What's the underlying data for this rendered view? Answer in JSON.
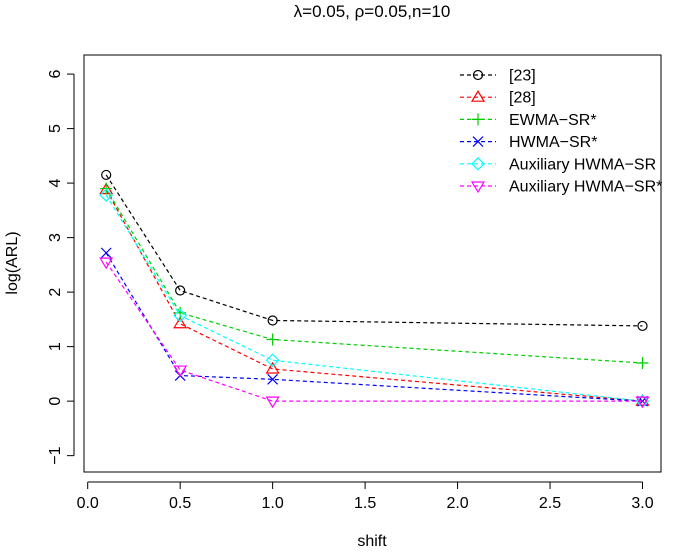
{
  "chart_data": {
    "type": "line",
    "title": "λ=0.05, ρ=0.05,n=10",
    "xlabel": "shift",
    "ylabel": "log(ARL)",
    "xlim": [
      0,
      3.0
    ],
    "ylim": [
      -1,
      6
    ],
    "x_ticks": [
      "0.0",
      "0.5",
      "1.0",
      "1.5",
      "2.0",
      "2.5",
      "3.0"
    ],
    "x_tick_values": [
      0,
      0.5,
      1.0,
      1.5,
      2.0,
      2.5,
      3.0
    ],
    "y_ticks": [
      "−1",
      "0",
      "1",
      "2",
      "3",
      "4",
      "5",
      "6"
    ],
    "y_tick_values": [
      -1,
      0,
      1,
      2,
      3,
      4,
      5,
      6
    ],
    "x": [
      0.1,
      0.5,
      1.0,
      3.0
    ],
    "legend_position": "top-right",
    "series": [
      {
        "name": "[23]",
        "color": "#000000",
        "marker": "circle",
        "values": [
          4.15,
          2.03,
          1.48,
          1.38
        ]
      },
      {
        "name": "[28]",
        "color": "#FF0000",
        "marker": "triangle-up",
        "values": [
          3.88,
          1.42,
          0.59,
          0.0
        ]
      },
      {
        "name": "EWMA−SR*",
        "color": "#00CD00",
        "marker": "plus",
        "values": [
          3.9,
          1.62,
          1.13,
          0.7
        ]
      },
      {
        "name": "HWMA−SR*",
        "color": "#0000FF",
        "marker": "cross",
        "values": [
          2.72,
          0.47,
          0.4,
          0.0
        ]
      },
      {
        "name": "Auxiliary HWMA−SR",
        "color": "#00FFFF",
        "marker": "diamond",
        "values": [
          3.78,
          1.57,
          0.75,
          0.0
        ]
      },
      {
        "name": "Auxiliary HWMA−SR*",
        "color": "#FF00FF",
        "marker": "triangle-down",
        "values": [
          2.55,
          0.57,
          0.0,
          0.0
        ]
      }
    ]
  }
}
